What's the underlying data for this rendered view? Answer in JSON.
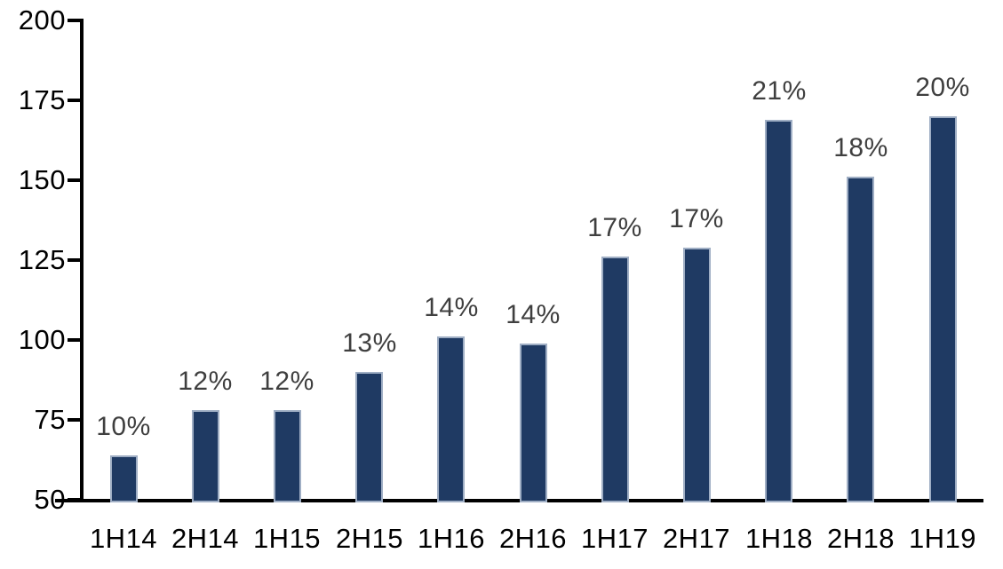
{
  "chart_data": {
    "type": "bar",
    "title": "",
    "xlabel": "",
    "ylabel": "",
    "categories": [
      "1H14",
      "2H14",
      "1H15",
      "2H15",
      "1H16",
      "2H16",
      "1H17",
      "2H17",
      "1H18",
      "2H18",
      "1H19"
    ],
    "values": [
      64,
      78,
      78,
      90,
      101,
      99,
      126,
      129,
      169,
      151,
      170
    ],
    "bar_labels": [
      "10%",
      "12%",
      "12%",
      "13%",
      "14%",
      "14%",
      "17%",
      "17%",
      "21%",
      "18%",
      "20%"
    ],
    "ylim": [
      50,
      200
    ],
    "yticks": [
      50,
      75,
      100,
      125,
      150,
      175,
      200
    ],
    "grid": false,
    "legend_position": "none",
    "colors": {
      "bar_fill": "#1F3A63",
      "bar_border": "#9FAEC4",
      "bar_label_text": "#3F3F3F",
      "axis_line": "#000000",
      "axis_text": "#000000",
      "background": "#FFFFFF"
    }
  }
}
